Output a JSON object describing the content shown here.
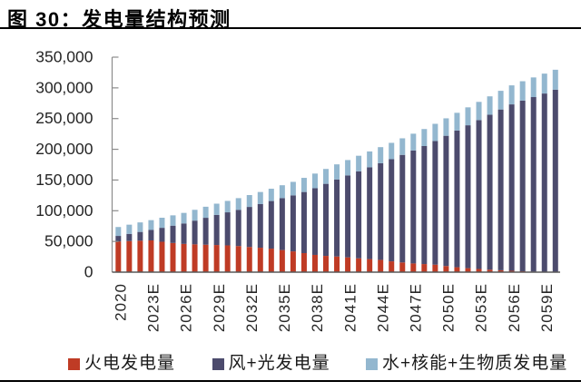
{
  "figure": {
    "title": "图 30：发电量结构预测",
    "rule_color": "#000000",
    "background": "#ffffff"
  },
  "chart_data": {
    "type": "bar",
    "stacked": true,
    "title": "发电量结构预测",
    "xlabel": "",
    "ylabel": "",
    "ylim": [
      0,
      350000
    ],
    "y_tick_step": 50000,
    "y_tick_labels": [
      "0",
      "50,000",
      "100,000",
      "150,000",
      "200,000",
      "250,000",
      "300,000",
      "350,000"
    ],
    "x_tick_labels": [
      "2020",
      "2023E",
      "2026E",
      "2029E",
      "2032E",
      "2035E",
      "2038E",
      "2041E",
      "2044E",
      "2047E",
      "2050E",
      "2053E",
      "2056E",
      "2059E"
    ],
    "x_label_every": 3,
    "grid": false,
    "legend_position": "bottom",
    "categories": [
      "2020",
      "2021E",
      "2022E",
      "2023E",
      "2024E",
      "2025E",
      "2026E",
      "2027E",
      "2028E",
      "2029E",
      "2030E",
      "2031E",
      "2032E",
      "2033E",
      "2034E",
      "2035E",
      "2036E",
      "2037E",
      "2038E",
      "2039E",
      "2040E",
      "2041E",
      "2042E",
      "2043E",
      "2044E",
      "2045E",
      "2046E",
      "2047E",
      "2048E",
      "2049E",
      "2050E",
      "2051E",
      "2052E",
      "2053E",
      "2054E",
      "2055E",
      "2056E",
      "2057E",
      "2058E",
      "2059E",
      "2060E"
    ],
    "series": [
      {
        "name": "火电发电量",
        "color": "#BF3B25",
        "values": [
          50000,
          50600,
          51200,
          51700,
          49500,
          47500,
          46000,
          45300,
          44700,
          44200,
          43600,
          42500,
          41000,
          39800,
          38300,
          36000,
          33800,
          31000,
          28100,
          26500,
          25500,
          24100,
          22500,
          21300,
          20000,
          17600,
          15800,
          14200,
          13200,
          12200,
          10000,
          8000,
          6500,
          5200,
          4100,
          3100,
          2200,
          1500,
          900,
          400,
          100
        ]
      },
      {
        "name": "风+光发电量",
        "color": "#4C4B6D",
        "values": [
          9000,
          11700,
          14300,
          17000,
          22700,
          28200,
          33300,
          38600,
          43800,
          49000,
          53800,
          59000,
          65200,
          71000,
          77500,
          84500,
          91200,
          99500,
          108600,
          117300,
          125400,
          133400,
          141600,
          149400,
          157300,
          166300,
          175100,
          183900,
          192100,
          201300,
          212000,
          222600,
          232600,
          242400,
          252100,
          261700,
          270900,
          277700,
          284100,
          290400,
          296900
        ]
      },
      {
        "name": "水+核能+生物质发电量",
        "color": "#93B7CF",
        "values": [
          14500,
          15000,
          15500,
          16000,
          16400,
          16800,
          17200,
          17600,
          18000,
          18300,
          18600,
          19000,
          19300,
          19700,
          20000,
          21000,
          22000,
          23000,
          23800,
          24200,
          24600,
          25000,
          25400,
          25800,
          26200,
          26600,
          27000,
          27300,
          27700,
          28000,
          28400,
          28800,
          29200,
          29600,
          30000,
          30400,
          31000,
          31600,
          32000,
          32400,
          32500
        ]
      }
    ],
    "axis_color": "#8C8C8C",
    "x_axis_color": "#595959",
    "tick_label_color": "#262626"
  }
}
